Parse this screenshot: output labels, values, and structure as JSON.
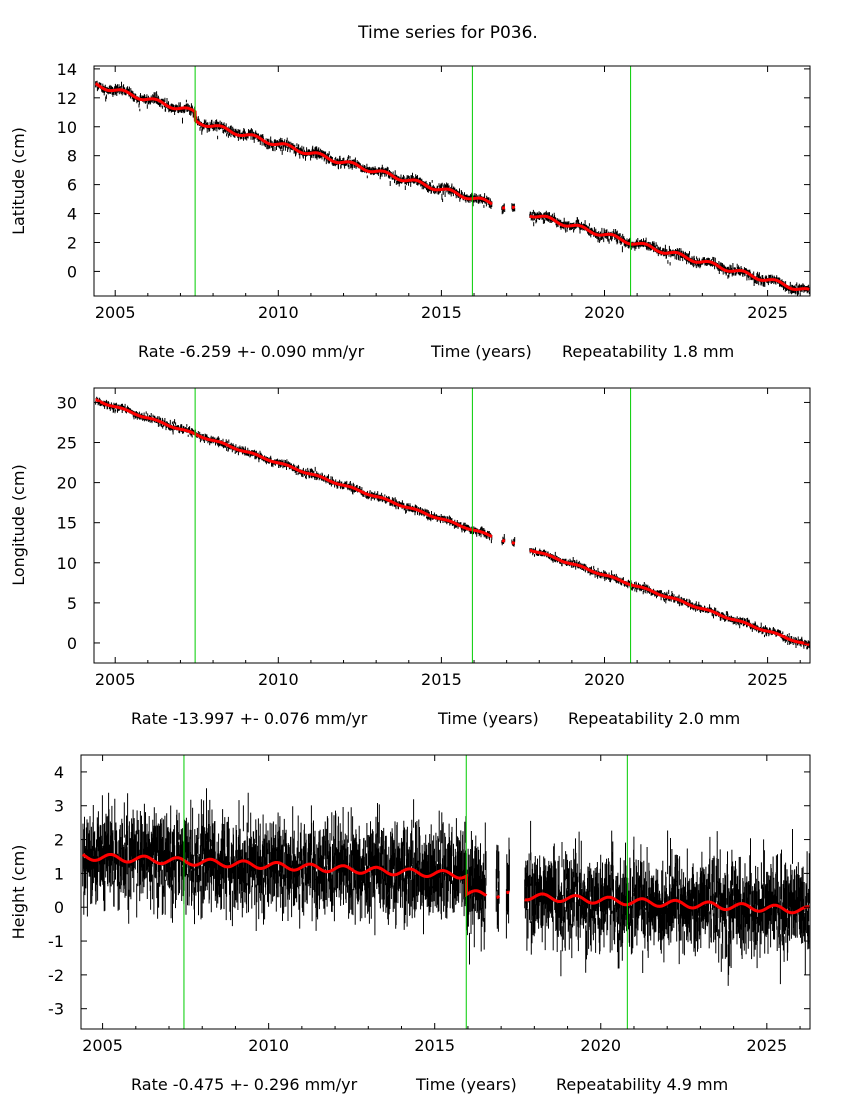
{
  "title": "Time series for P036.",
  "colors": {
    "data": "#000000",
    "model": "#ff0000",
    "break_line": "#00cc00",
    "frame": "#000000"
  },
  "chart_data": [
    {
      "type": "scatter",
      "id": "latitude",
      "ylabel": "Latitude (cm)",
      "x_range": [
        2004.35,
        2026.3
      ],
      "ylim": [
        -1.7,
        14.2
      ],
      "xticks": [
        2005,
        2010,
        2015,
        2020,
        2025
      ],
      "yticks": [
        0,
        2,
        4,
        6,
        8,
        10,
        12,
        14
      ],
      "xlabel": {
        "rate": "Rate -6.259 +- 0.090 mm/yr",
        "axis": "Time (years)",
        "repeat": "Repeatability 1.8 mm"
      },
      "breaks": [
        2007.45,
        2015.95,
        2020.8
      ],
      "gaps": [
        [
          2016.55,
          2016.85
        ],
        [
          2016.95,
          2017.15
        ],
        [
          2017.25,
          2017.7
        ]
      ],
      "series": [
        {
          "name": "model",
          "t0": 2004.4,
          "y0": 12.9,
          "rate": -0.6259,
          "seasonal_amp": 0.15,
          "offsets": [
            {
              "t": 2007.45,
              "dy": -0.6
            }
          ]
        }
      ],
      "noise": 0.15,
      "outliers_below": 0.35
    },
    {
      "type": "scatter",
      "id": "longitude",
      "ylabel": "Longitude (cm)",
      "x_range": [
        2004.35,
        2026.3
      ],
      "ylim": [
        -2.5,
        31.8
      ],
      "xticks": [
        2005,
        2010,
        2015,
        2020,
        2025
      ],
      "yticks": [
        0,
        5,
        10,
        15,
        20,
        25,
        30
      ],
      "xlabel": {
        "rate": "Rate -13.997 +- 0.076 mm/yr",
        "axis": "Time (years)",
        "repeat": "Repeatability 2.0 mm"
      },
      "breaks": [
        2007.45,
        2015.95,
        2020.8
      ],
      "gaps": [
        [
          2016.55,
          2016.85
        ],
        [
          2016.95,
          2017.15
        ],
        [
          2017.25,
          2017.7
        ]
      ],
      "series": [
        {
          "name": "model",
          "t0": 2004.4,
          "y0": 30.3,
          "rate": -1.3997,
          "seasonal_amp": 0.1,
          "offsets": []
        }
      ],
      "noise": 0.22,
      "outliers_below": 0.0
    },
    {
      "type": "scatter",
      "id": "height",
      "ylabel": "Height (cm)",
      "x_range": [
        2004.35,
        2026.3
      ],
      "ylim": [
        -3.6,
        4.5
      ],
      "xticks": [
        2005,
        2010,
        2015,
        2020,
        2025
      ],
      "yticks": [
        4,
        3,
        2,
        1,
        0,
        -1,
        -2,
        -3
      ],
      "ytick_labels": [
        "4",
        "3",
        "2",
        "1",
        "0",
        "-1",
        "-2",
        "-3"
      ],
      "xlabel": {
        "rate": "Rate -0.475 +- 0.296 mm/yr",
        "axis": "Time (years)",
        "repeat": "Repeatability 4.9 mm"
      },
      "breaks": [
        2007.45,
        2015.95,
        2020.8
      ],
      "gaps": [
        [
          2016.55,
          2016.85
        ],
        [
          2016.95,
          2017.15
        ],
        [
          2017.25,
          2017.7
        ]
      ],
      "series": [
        {
          "name": "model",
          "t0": 2004.4,
          "y0": 1.5,
          "rate": -0.0475,
          "seasonal_amp": 0.1,
          "offsets": [
            {
              "t": 2015.95,
              "dy": -0.55
            }
          ]
        }
      ],
      "noise": 0.55,
      "outliers_below": 0.0
    }
  ]
}
